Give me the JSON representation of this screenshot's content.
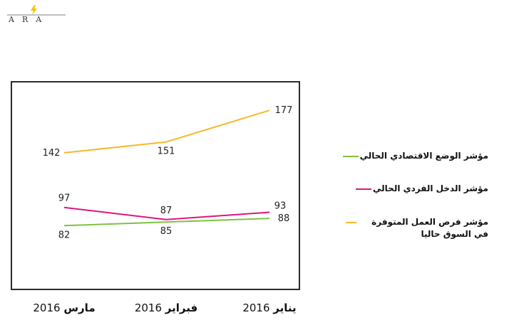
{
  "logo": {
    "text": "ARA",
    "bolt_color": "#f2c200"
  },
  "chart_data": {
    "type": "line",
    "categories": [
      "مارس 2016",
      "فبراير 2016",
      "يناير 2016"
    ],
    "category_parts": [
      {
        "month": "مارس",
        "year": "2016"
      },
      {
        "month": "فبراير",
        "year": "2016"
      },
      {
        "month": "يناير",
        "year": "2016"
      }
    ],
    "series": [
      {
        "name": "مؤشر الوضع الاقتصادي الحالي",
        "values": [
          82,
          85,
          88
        ],
        "color": "#7dc33f"
      },
      {
        "name": "مؤشر الدخل الفردي الحالي",
        "values": [
          97,
          87,
          93
        ],
        "color": "#e0157c"
      },
      {
        "name": "مؤشر فرص العمل المتوفرة في السوق حاليا",
        "values": [
          142,
          151,
          177
        ],
        "color": "#f7b928"
      }
    ],
    "data_label_positions": [
      [
        "below",
        "below",
        "right"
      ],
      [
        "above",
        "above",
        "above-right"
      ],
      [
        "left",
        "below",
        "right"
      ]
    ],
    "ylim": [
      30,
      200
    ],
    "grid": false,
    "legend": "right",
    "title": "",
    "xlabel": "",
    "ylabel": ""
  }
}
